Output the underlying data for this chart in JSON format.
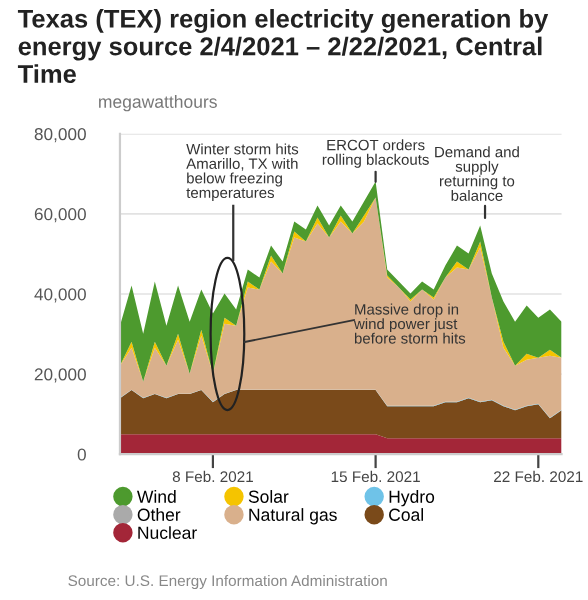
{
  "chart_data": {
    "type": "area",
    "stacked": true,
    "title": "Texas (TEX) region electricity generation by energy source 2/4/2021 – 2/22/2021, Central Time",
    "ylabel": "megawatthours",
    "x": [
      "2021-02-04T00:00",
      "2021-02-04T12:00",
      "2021-02-05T00:00",
      "2021-02-05T12:00",
      "2021-02-06T00:00",
      "2021-02-06T12:00",
      "2021-02-07T00:00",
      "2021-02-07T12:00",
      "2021-02-08T00:00",
      "2021-02-08T12:00",
      "2021-02-09T00:00",
      "2021-02-09T12:00",
      "2021-02-10T00:00",
      "2021-02-10T12:00",
      "2021-02-11T00:00",
      "2021-02-11T12:00",
      "2021-02-12T00:00",
      "2021-02-12T12:00",
      "2021-02-13T00:00",
      "2021-02-13T12:00",
      "2021-02-14T00:00",
      "2021-02-14T12:00",
      "2021-02-15T00:00",
      "2021-02-15T12:00",
      "2021-02-16T00:00",
      "2021-02-16T12:00",
      "2021-02-17T00:00",
      "2021-02-17T12:00",
      "2021-02-18T00:00",
      "2021-02-18T12:00",
      "2021-02-19T00:00",
      "2021-02-19T12:00",
      "2021-02-20T00:00",
      "2021-02-20T12:00",
      "2021-02-21T00:00",
      "2021-02-21T12:00",
      "2021-02-22T00:00",
      "2021-02-22T12:00",
      "2021-02-23T00:00"
    ],
    "series": [
      {
        "name": "Nuclear",
        "color": "#a32638",
        "values": [
          5000,
          5000,
          5000,
          5000,
          5000,
          5000,
          5000,
          5000,
          5000,
          5000,
          5000,
          5000,
          5000,
          5000,
          5000,
          5000,
          5000,
          5000,
          5000,
          5000,
          5000,
          5000,
          5000,
          4000,
          4000,
          4000,
          4000,
          4000,
          4000,
          4000,
          4000,
          4000,
          4000,
          4000,
          4000,
          4000,
          4000,
          4000,
          4000
        ]
      },
      {
        "name": "Coal",
        "color": "#7a4a1a",
        "values": [
          9000,
          11000,
          9000,
          10000,
          9000,
          10000,
          10000,
          11000,
          8000,
          10000,
          11000,
          11000,
          11000,
          11000,
          11000,
          11000,
          11000,
          11000,
          11000,
          11000,
          11000,
          11000,
          11000,
          8000,
          8000,
          8000,
          8000,
          8000,
          9000,
          9000,
          10000,
          9000,
          9500,
          8000,
          7000,
          8000,
          8500,
          5000,
          7000
        ]
      },
      {
        "name": "Hydro",
        "color": "#6fc3e8",
        "values": [
          100,
          100,
          100,
          100,
          100,
          100,
          100,
          100,
          100,
          100,
          100,
          100,
          100,
          100,
          100,
          100,
          100,
          100,
          100,
          100,
          100,
          100,
          100,
          100,
          100,
          100,
          100,
          100,
          100,
          100,
          100,
          100,
          100,
          100,
          100,
          100,
          100,
          100,
          100
        ]
      },
      {
        "name": "Other",
        "color": "#aaaaaa",
        "values": [
          null,
          null,
          null,
          null,
          null,
          null,
          null,
          null,
          null,
          null,
          null,
          null,
          null,
          null,
          null,
          null,
          null,
          null,
          null,
          null,
          null,
          null,
          null,
          null,
          null,
          null,
          null,
          null,
          null,
          null,
          null,
          null,
          null,
          null,
          null,
          null,
          null,
          null,
          null
        ]
      },
      {
        "name": "Natural gas",
        "color": "#d9b08c",
        "values": [
          8000,
          10500,
          4000,
          11500,
          8000,
          13500,
          5000,
          13500,
          7000,
          17500,
          16000,
          25500,
          25000,
          32000,
          29000,
          38000,
          37000,
          41500,
          38000,
          42000,
          39000,
          42000,
          48000,
          32000,
          29500,
          26000,
          29000,
          26500,
          31000,
          33500,
          32000,
          38500,
          25500,
          14500,
          11000,
          11500,
          11500,
          15500,
          13000
        ]
      },
      {
        "name": "Solar",
        "color": "#f5c400",
        "values": [
          0,
          1500,
          0,
          1500,
          0,
          1500,
          0,
          1500,
          0,
          1500,
          0,
          1500,
          0,
          1500,
          0,
          1500,
          0,
          1500,
          0,
          1500,
          0,
          1500,
          0,
          500,
          0,
          500,
          0,
          500,
          0,
          1500,
          0,
          1500,
          0,
          1500,
          0,
          1500,
          0,
          1500,
          0
        ]
      },
      {
        "name": "Wind",
        "color": "#4d9a2e",
        "values": [
          10000,
          14000,
          12000,
          15000,
          10000,
          12000,
          13000,
          10000,
          15000,
          6000,
          4000,
          3000,
          3000,
          2500,
          3000,
          2500,
          3000,
          3000,
          3000,
          2500,
          3000,
          3500,
          4000,
          1500,
          1500,
          1500,
          2000,
          2000,
          3000,
          4000,
          4000,
          4000,
          6000,
          10000,
          11000,
          12000,
          10000,
          10000,
          9000
        ]
      }
    ],
    "xlim": [
      "2021-02-04",
      "2021-02-23"
    ],
    "xticks": [
      {
        "value": "2021-02-08",
        "label": "8 Feb. 2021"
      },
      {
        "value": "2021-02-15",
        "label": "15 Feb. 2021"
      },
      {
        "value": "2021-02-22",
        "label": "22 Feb. 2021"
      }
    ],
    "ylim": [
      0,
      80000
    ],
    "yticks": [
      0,
      {
        "value": 20000,
        "label": "20,000"
      },
      {
        "value": 40000,
        "label": "40,000"
      },
      {
        "value": 60000,
        "label": "60,000"
      },
      {
        "value": 80000,
        "label": "80,000"
      }
    ],
    "grid": "y",
    "legend": "bottom",
    "annotations": [
      "Winter storm hits Amarillo, TX with below freezing temperatures",
      "Massive drop in wind power just before storm hits",
      {
        "text": "ERCOT orders rolling blackouts",
        "x": "2021-02-15T00:00",
        "y": 68000
      },
      {
        "text": "Demand and supply returning to balance",
        "x": "2021-02-19T17:00",
        "y": 59000
      },
      "Source: U.S. Energy Information Administration"
    ]
  }
}
